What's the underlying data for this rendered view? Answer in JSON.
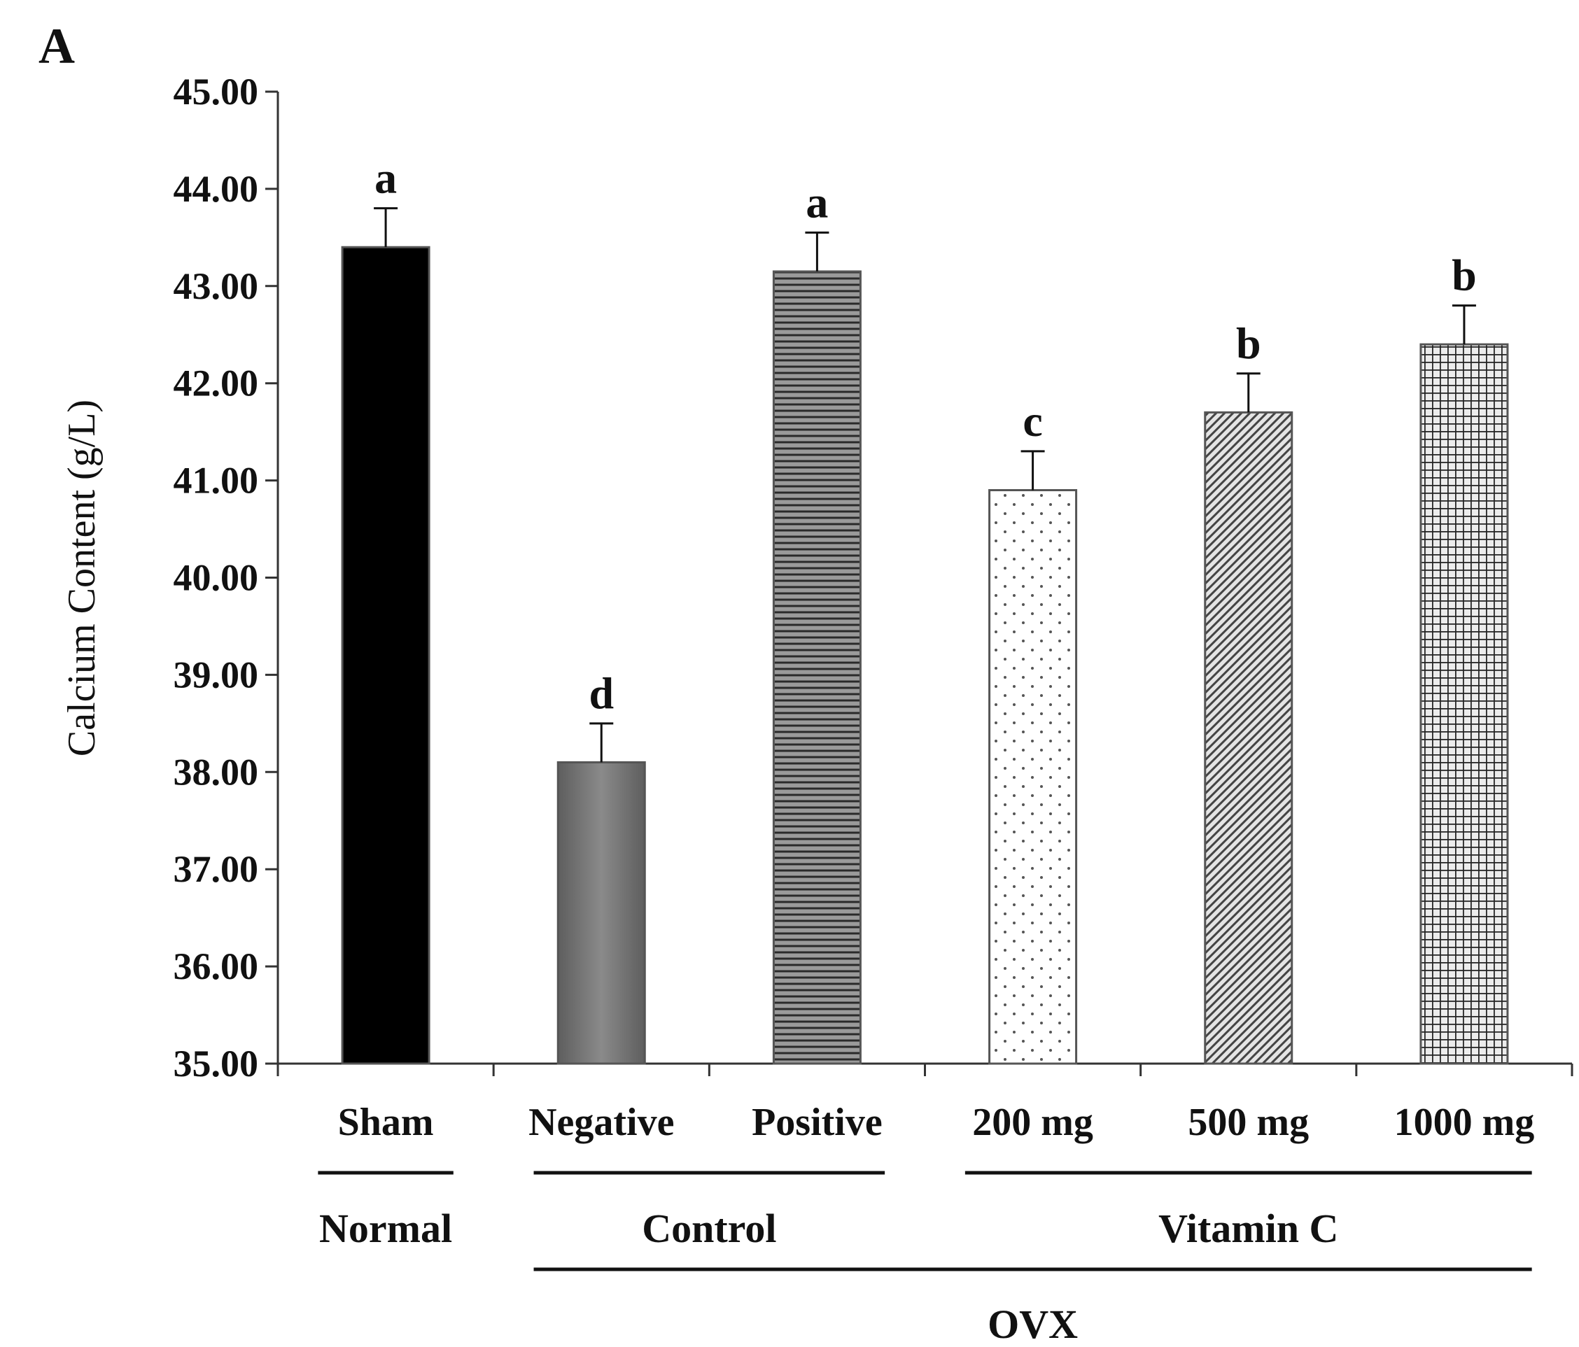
{
  "panel_label": "A",
  "chart_data": {
    "type": "bar",
    "title": "",
    "xlabel": "",
    "ylabel": "Calcium Content (g/L)",
    "ylim": [
      35,
      45
    ],
    "yticks": [
      "35.00",
      "36.00",
      "37.00",
      "38.00",
      "39.00",
      "40.00",
      "41.00",
      "42.00",
      "43.00",
      "44.00",
      "45.00"
    ],
    "categories": [
      "Sham",
      "Negative",
      "Positive",
      "200 mg",
      "500 mg",
      "1000 mg"
    ],
    "values": [
      43.4,
      38.1,
      43.15,
      40.9,
      41.7,
      42.4
    ],
    "errors": [
      0.4,
      0.4,
      0.4,
      0.4,
      0.4,
      0.4
    ],
    "significance": [
      "a",
      "d",
      "a",
      "c",
      "b",
      "b"
    ],
    "fills": [
      "solid-black",
      "solid-gray",
      "horizontal-lines",
      "dots",
      "diagonal-lines",
      "grid"
    ],
    "colors": {
      "sham": "#000000",
      "negative": "#7a7a7a",
      "pattern": "#333333"
    },
    "groups": [
      {
        "label": "Normal",
        "members": [
          "Sham"
        ]
      },
      {
        "label": "Control",
        "members": [
          "Negative",
          "Positive"
        ]
      },
      {
        "label": "Vitamin C",
        "members": [
          "200 mg",
          "500 mg",
          "1000 mg"
        ]
      }
    ],
    "supergroup": {
      "label": "OVX",
      "members": [
        "Negative",
        "Positive",
        "200 mg",
        "500 mg",
        "1000 mg"
      ]
    },
    "grid": false,
    "legend": "none"
  }
}
